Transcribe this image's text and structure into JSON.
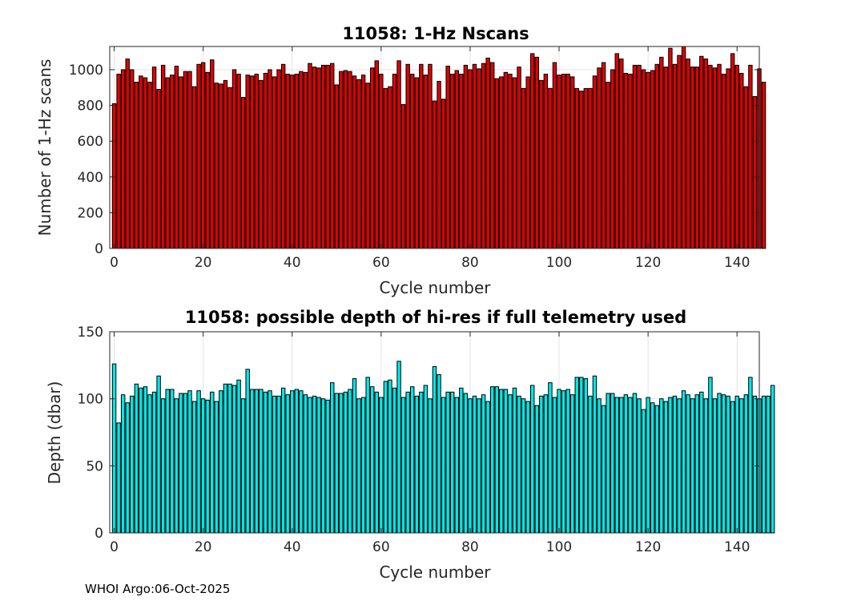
{
  "footer": "WHOI Argo:06-Oct-2025",
  "chart_data": [
    {
      "type": "bar",
      "title": "11058: 1-Hz Nscans",
      "xlabel": "Cycle number",
      "ylabel": "Number of 1-Hz scans",
      "xlim": [
        -1,
        145
      ],
      "ylim": [
        0,
        1130
      ],
      "xticks": [
        0,
        20,
        40,
        60,
        80,
        100,
        120,
        140
      ],
      "yticks": [
        0,
        200,
        400,
        600,
        800,
        1000
      ],
      "bar_color": "#e00000",
      "grid": true,
      "x_start": 0,
      "values": [
        810,
        975,
        1000,
        1060,
        1000,
        930,
        965,
        955,
        930,
        1015,
        890,
        1025,
        955,
        970,
        1020,
        960,
        990,
        990,
        905,
        1030,
        1040,
        985,
        1055,
        925,
        920,
        940,
        900,
        1000,
        975,
        845,
        970,
        965,
        975,
        940,
        980,
        1000,
        960,
        1000,
        1030,
        975,
        970,
        975,
        990,
        985,
        1035,
        1015,
        1010,
        1025,
        1025,
        1035,
        915,
        990,
        995,
        990,
        965,
        945,
        970,
        925,
        1010,
        1050,
        975,
        895,
        905,
        975,
        1050,
        805,
        1030,
        975,
        955,
        1030,
        970,
        1030,
        825,
        935,
        835,
        1020,
        975,
        995,
        975,
        1025,
        1000,
        1030,
        1005,
        1035,
        1065,
        1040,
        950,
        960,
        985,
        975,
        955,
        1015,
        895,
        960,
        1090,
        1070,
        940,
        975,
        895,
        1040,
        970,
        975,
        975,
        960,
        895,
        880,
        895,
        895,
        965,
        1010,
        1040,
        930,
        1000,
        1090,
        1060,
        980,
        975,
        1025,
        1025,
        1000,
        985,
        995,
        1030,
        1070,
        1015,
        1120,
        1030,
        1080,
        1130,
        1060,
        1015,
        1015,
        1075,
        1060,
        1025,
        1010,
        1030,
        975,
        1005,
        1090,
        1025,
        980,
        905,
        1025,
        850,
        1005,
        930
      ]
    },
    {
      "type": "bar",
      "title": "11058: possible depth of hi-res if full telemetry used",
      "xlabel": "Cycle number",
      "ylabel": "Depth (dbar)",
      "xlim": [
        -1,
        145
      ],
      "ylim": [
        0,
        150
      ],
      "xticks": [
        0,
        20,
        40,
        60,
        80,
        100,
        120,
        140
      ],
      "yticks": [
        0,
        50,
        100,
        150
      ],
      "bar_color": "#00e8e8",
      "grid": true,
      "x_start": 0,
      "values": [
        126,
        82,
        103,
        97,
        102,
        111,
        108,
        109,
        103,
        105,
        117,
        100,
        107,
        107,
        100,
        104,
        104,
        106,
        98,
        106,
        100,
        99,
        105,
        98,
        106,
        111,
        111,
        110,
        114,
        100,
        122,
        107,
        107,
        107,
        105,
        106,
        102,
        102,
        108,
        103,
        106,
        107,
        106,
        103,
        101,
        102,
        101,
        100,
        99,
        112,
        104,
        104,
        105,
        107,
        115,
        100,
        101,
        116,
        109,
        105,
        101,
        113,
        114,
        108,
        128,
        101,
        105,
        109,
        102,
        105,
        110,
        100,
        124,
        118,
        101,
        105,
        105,
        101,
        108,
        104,
        100,
        102,
        100,
        103,
        98,
        109,
        109,
        107,
        107,
        103,
        108,
        102,
        100,
        98,
        110,
        95,
        102,
        103,
        112,
        101,
        107,
        106,
        107,
        103,
        116,
        116,
        115,
        102,
        117,
        100,
        95,
        104,
        104,
        101,
        101,
        103,
        101,
        104,
        100,
        92,
        101,
        97,
        95,
        100,
        98,
        101,
        102,
        100,
        106,
        103,
        100,
        103,
        105,
        100,
        116,
        100,
        104,
        103,
        102,
        98,
        102,
        100,
        103,
        116,
        102,
        100,
        102,
        102,
        110
      ]
    }
  ]
}
